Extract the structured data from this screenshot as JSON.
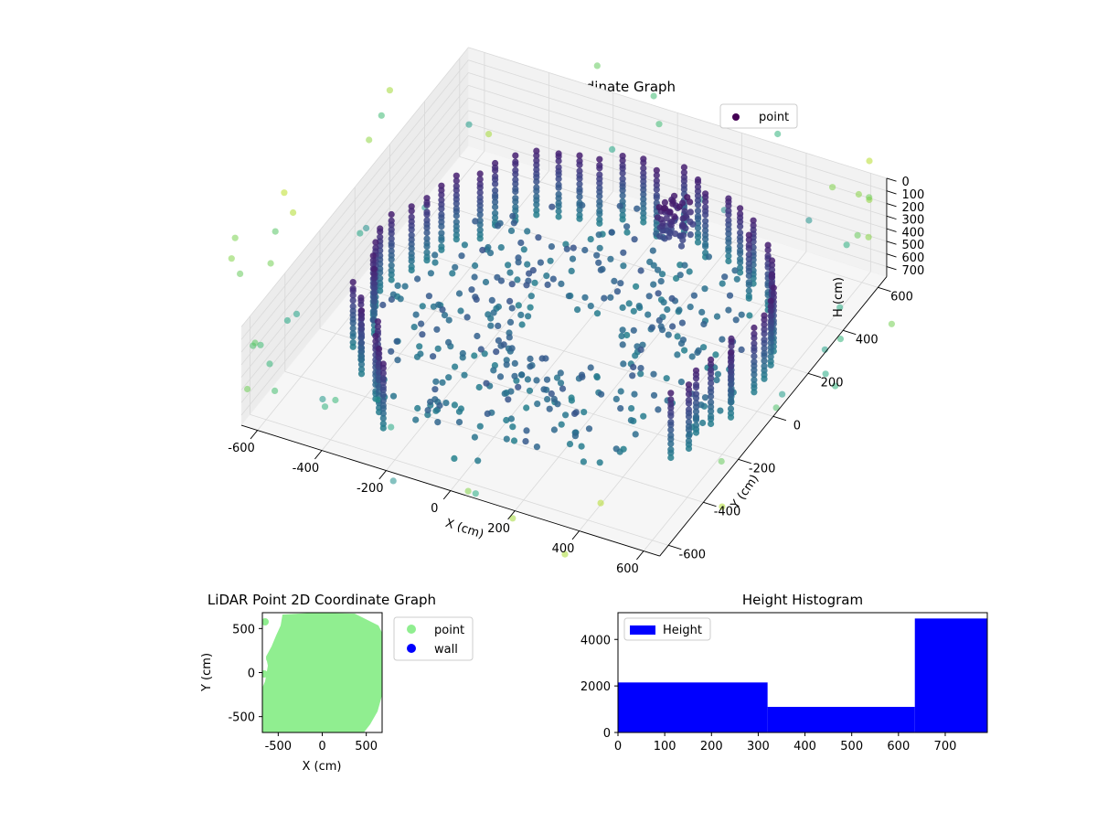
{
  "chart_data": [
    {
      "type": "scatter",
      "title": "LiDAR Point 3D Coordinate Graph",
      "xlabel": "X (cm)",
      "ylabel": "Y (cm)",
      "zlabel": "H (cm)",
      "xlim": [
        -650,
        650
      ],
      "ylim": [
        -650,
        650
      ],
      "zlim": [
        0,
        780
      ],
      "z_inverted": true,
      "x_ticks": [
        -600,
        -400,
        -200,
        0,
        200,
        400,
        600
      ],
      "y_ticks": [
        -600,
        -400,
        -200,
        0,
        200,
        400,
        600
      ],
      "z_ticks": [
        0,
        100,
        200,
        300,
        400,
        500,
        600,
        700
      ],
      "colormap": "viridis",
      "legend": {
        "placement": "top-right",
        "entries": [
          "point"
        ],
        "color": "#440154"
      },
      "grid": true,
      "series": [
        {
          "name": "point",
          "description_shape": "vertical cylindrical wall, radius ~550, open toward viewer, rim height ~200-780",
          "wall_radius": 550,
          "wall_top_h": 200,
          "wall_bottom_h": 780,
          "sparse_outliers": true
        }
      ]
    },
    {
      "type": "scatter",
      "title": "LiDAR Point 2D Coordinate Graph",
      "xlabel": "X (cm)",
      "ylabel": "Y (cm)",
      "xlim": [
        -680,
        680
      ],
      "ylim": [
        -680,
        680
      ],
      "x_ticks": [
        -500,
        0,
        500
      ],
      "y_ticks": [
        500,
        0,
        -500
      ],
      "legend": {
        "placement": "outside-right",
        "entries": [
          {
            "name": "point",
            "color": "#90ee90"
          },
          {
            "name": "wall",
            "color": "#0000ff"
          }
        ]
      },
      "series": [
        {
          "name": "point",
          "color": "#90ee90",
          "extent": "filled disc, radius ~650"
        },
        {
          "name": "wall",
          "color": "#0000ff",
          "points": []
        }
      ]
    },
    {
      "type": "bar",
      "title": "Height Histogram",
      "xlabel": "",
      "ylabel": "",
      "xlim": [
        0,
        790
      ],
      "ylim": [
        0,
        5150
      ],
      "x_ticks": [
        0,
        100,
        200,
        300,
        400,
        500,
        600,
        700
      ],
      "y_ticks": [
        0,
        2000,
        4000
      ],
      "legend": {
        "placement": "top-left",
        "entries": [
          "Height"
        ]
      },
      "bins": [
        {
          "x0": 0,
          "x1": 320,
          "count": 2150
        },
        {
          "x0": 320,
          "x1": 635,
          "count": 1100
        },
        {
          "x0": 635,
          "x1": 790,
          "count": 4900
        }
      ],
      "color": "#0000ff"
    }
  ]
}
